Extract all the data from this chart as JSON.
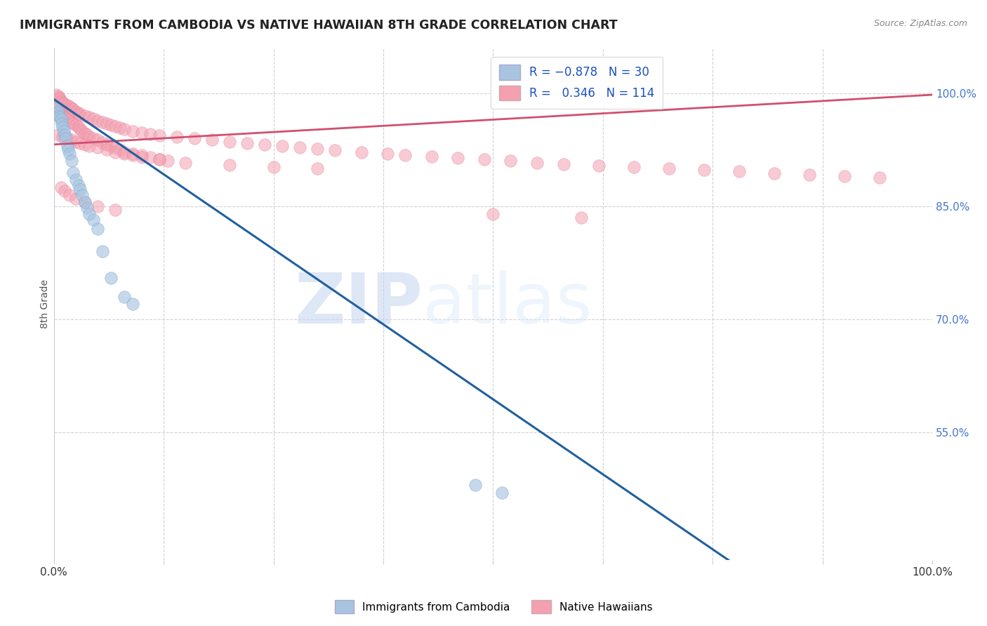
{
  "title": "IMMIGRANTS FROM CAMBODIA VS NATIVE HAWAIIAN 8TH GRADE CORRELATION CHART",
  "source": "Source: ZipAtlas.com",
  "ylabel": "8th Grade",
  "yticks": [
    0.55,
    0.7,
    0.85,
    1.0
  ],
  "ytick_labels": [
    "55.0%",
    "70.0%",
    "85.0%",
    "100.0%"
  ],
  "legend_entries": [
    {
      "label": "Immigrants from Cambodia",
      "color": "#a8c4e0",
      "R": "-0.878",
      "N": "30"
    },
    {
      "label": "Native Hawaiians",
      "color": "#f4a0b0",
      "R": "0.346",
      "N": "114"
    }
  ],
  "blue_scatter_x": [
    0.003,
    0.005,
    0.006,
    0.007,
    0.008,
    0.009,
    0.01,
    0.011,
    0.012,
    0.013,
    0.015,
    0.016,
    0.018,
    0.02,
    0.022,
    0.025,
    0.028,
    0.03,
    0.032,
    0.035,
    0.038,
    0.04,
    0.045,
    0.05,
    0.055,
    0.065,
    0.08,
    0.09,
    0.48,
    0.51
  ],
  "blue_scatter_y": [
    0.98,
    0.975,
    0.97,
    0.968,
    0.965,
    0.96,
    0.955,
    0.95,
    0.945,
    0.94,
    0.93,
    0.925,
    0.92,
    0.91,
    0.895,
    0.885,
    0.878,
    0.872,
    0.865,
    0.855,
    0.848,
    0.84,
    0.832,
    0.82,
    0.79,
    0.755,
    0.73,
    0.72,
    0.48,
    0.47
  ],
  "pink_scatter_x": [
    0.003,
    0.005,
    0.006,
    0.008,
    0.01,
    0.012,
    0.015,
    0.018,
    0.02,
    0.022,
    0.025,
    0.028,
    0.03,
    0.032,
    0.035,
    0.038,
    0.04,
    0.045,
    0.05,
    0.055,
    0.06,
    0.065,
    0.07,
    0.075,
    0.08,
    0.09,
    0.1,
    0.11,
    0.12,
    0.13,
    0.003,
    0.005,
    0.006,
    0.007,
    0.008,
    0.01,
    0.012,
    0.015,
    0.018,
    0.02,
    0.022,
    0.025,
    0.028,
    0.03,
    0.035,
    0.04,
    0.045,
    0.05,
    0.055,
    0.06,
    0.065,
    0.07,
    0.075,
    0.08,
    0.09,
    0.1,
    0.11,
    0.12,
    0.14,
    0.16,
    0.18,
    0.2,
    0.22,
    0.24,
    0.26,
    0.28,
    0.3,
    0.32,
    0.35,
    0.38,
    0.4,
    0.43,
    0.46,
    0.49,
    0.52,
    0.55,
    0.58,
    0.62,
    0.66,
    0.7,
    0.74,
    0.78,
    0.82,
    0.86,
    0.9,
    0.94,
    0.005,
    0.01,
    0.015,
    0.02,
    0.025,
    0.03,
    0.035,
    0.04,
    0.05,
    0.06,
    0.07,
    0.08,
    0.09,
    0.1,
    0.12,
    0.15,
    0.2,
    0.25,
    0.3,
    0.008,
    0.012,
    0.018,
    0.025,
    0.035,
    0.05,
    0.07,
    0.5,
    0.6
  ],
  "pink_scatter_y": [
    0.985,
    0.98,
    0.977,
    0.975,
    0.972,
    0.97,
    0.968,
    0.965,
    0.962,
    0.96,
    0.958,
    0.955,
    0.952,
    0.95,
    0.947,
    0.945,
    0.942,
    0.94,
    0.938,
    0.935,
    0.932,
    0.93,
    0.928,
    0.925,
    0.922,
    0.92,
    0.918,
    0.915,
    0.912,
    0.91,
    0.998,
    0.996,
    0.994,
    0.992,
    0.99,
    0.988,
    0.986,
    0.984,
    0.982,
    0.98,
    0.978,
    0.976,
    0.974,
    0.972,
    0.97,
    0.968,
    0.966,
    0.964,
    0.962,
    0.96,
    0.958,
    0.956,
    0.954,
    0.952,
    0.95,
    0.948,
    0.946,
    0.944,
    0.942,
    0.94,
    0.938,
    0.936,
    0.934,
    0.932,
    0.93,
    0.928,
    0.926,
    0.924,
    0.922,
    0.92,
    0.918,
    0.916,
    0.914,
    0.912,
    0.91,
    0.908,
    0.906,
    0.904,
    0.902,
    0.9,
    0.898,
    0.896,
    0.894,
    0.892,
    0.89,
    0.888,
    0.945,
    0.942,
    0.94,
    0.938,
    0.936,
    0.934,
    0.932,
    0.93,
    0.928,
    0.925,
    0.922,
    0.92,
    0.918,
    0.915,
    0.912,
    0.908,
    0.905,
    0.902,
    0.9,
    0.875,
    0.87,
    0.865,
    0.86,
    0.855,
    0.85,
    0.845,
    0.84,
    0.835
  ],
  "blue_line_x": [
    0.0,
    1.0
  ],
  "blue_line_y": [
    0.992,
    0.195
  ],
  "pink_line_x": [
    0.0,
    1.0
  ],
  "pink_line_y": [
    0.932,
    0.998
  ],
  "blue_scatter_color": "#a8c4e0",
  "pink_scatter_color": "#f4a0b0",
  "blue_line_color": "#2060a0",
  "pink_line_color": "#d05070",
  "watermark_zip": "ZIP",
  "watermark_atlas": "atlas",
  "background_color": "#ffffff",
  "xlim": [
    0.0,
    1.0
  ],
  "ylim": [
    0.38,
    1.06
  ]
}
